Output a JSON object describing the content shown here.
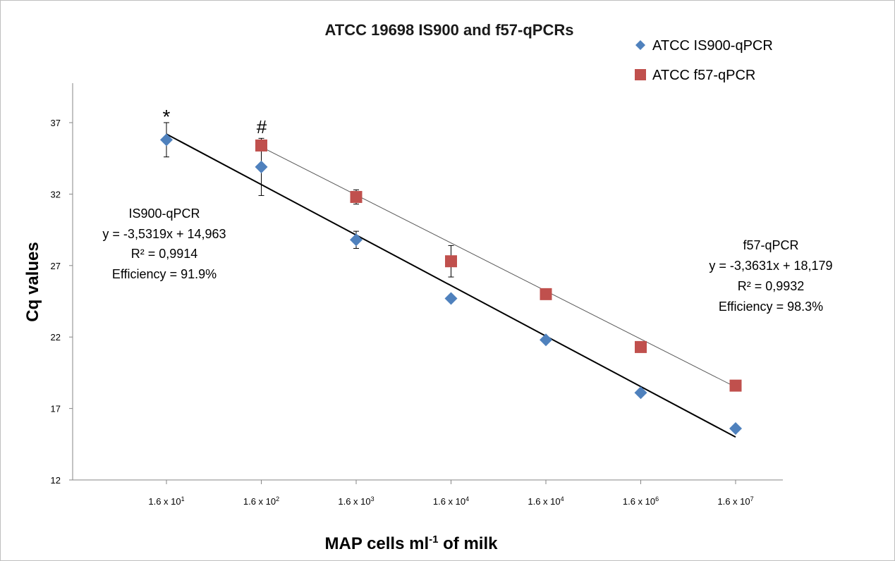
{
  "chart_data": {
    "type": "scatter",
    "title": "ATCC 19698 IS900 and f57-qPCRs",
    "xlabel": {
      "main": "MAP cells ml",
      "sup": "-1",
      "tail": " of milk"
    },
    "ylabel": "Cq values",
    "ylim": [
      12,
      40
    ],
    "yticks": [
      "12",
      "17",
      "22",
      "27",
      "32",
      "37"
    ],
    "categories": [
      {
        "base": "1.6 x 10",
        "exp": "1"
      },
      {
        "base": "1.6 x 10",
        "exp": "2"
      },
      {
        "base": "1.6 x 10",
        "exp": "3"
      },
      {
        "base": "1.6 x 10",
        "exp": "4"
      },
      {
        "base": "1.6 x 10",
        "exp": "4"
      },
      {
        "base": "1.6 x 10",
        "exp": "6"
      },
      {
        "base": "1.6 x 10",
        "exp": "7"
      }
    ],
    "grid": false,
    "legend_position": "top-right",
    "series": [
      {
        "name": "ATCC IS900-qPCR",
        "color": "#4f81bd",
        "marker": "diamond",
        "values": [
          35.8,
          33.9,
          28.8,
          24.7,
          21.8,
          18.1,
          15.6
        ],
        "error": [
          1.2,
          2.0,
          0.6,
          null,
          null,
          null,
          null
        ],
        "trendline": {
          "color": "#000000",
          "from": [
            1,
            36.2
          ],
          "to": [
            7,
            15.0
          ]
        }
      },
      {
        "name": "ATCC f57-qPCR",
        "color": "#c0504d",
        "marker": "square",
        "values": [
          null,
          35.4,
          31.8,
          27.3,
          25.0,
          21.3,
          18.6
        ],
        "error": [
          null,
          null,
          0.5,
          1.1,
          null,
          null,
          null
        ],
        "trendline": {
          "color": "#595959",
          "from": [
            2,
            35.3
          ],
          "to": [
            7,
            18.5
          ]
        }
      }
    ],
    "annotations": {
      "is900": [
        "IS900-qPCR",
        "y = -3,5319x + 14,963",
        "R² = 0,9914",
        "Efficiency = 91.9%"
      ],
      "f57": [
        "f57-qPCR",
        "y = -3,3631x + 18,179",
        "R² = 0,9932",
        "Efficiency = 98.3%"
      ],
      "star": "*",
      "hash": "#"
    }
  }
}
